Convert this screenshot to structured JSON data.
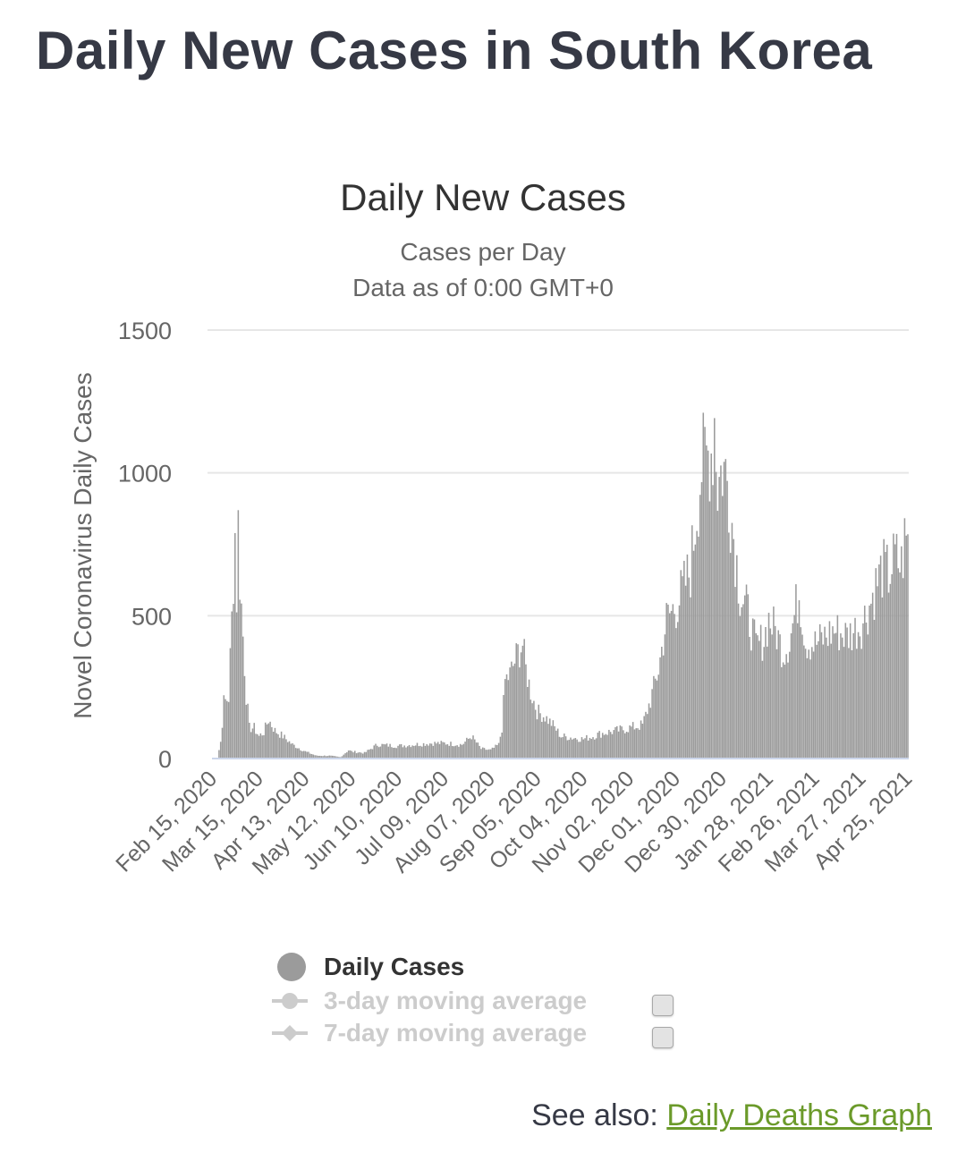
{
  "page": {
    "title": "Daily New Cases in South Korea",
    "see_also_prefix": "See also: ",
    "see_also_link": "Daily Deaths Graph"
  },
  "colors": {
    "bar": "#9b9b9b",
    "grid": "#e6e6e6",
    "axis": "#ccd6eb",
    "text": "#363945",
    "muted": "#666666",
    "legend_disabled": "#cccccc",
    "link": "#6b9a2a"
  },
  "legend": [
    {
      "label": "Daily Cases",
      "active": true,
      "marker": "circle"
    },
    {
      "label": "3-day moving average",
      "active": false,
      "marker": "circle-line"
    },
    {
      "label": "7-day moving average",
      "active": false,
      "marker": "diamond-line"
    }
  ],
  "chart_data": {
    "type": "bar",
    "title": "Daily New Cases",
    "subtitle_lines": [
      "Cases per Day",
      "Data as of 0:00 GMT+0"
    ],
    "ylabel": "Novel Coronavirus Daily Cases",
    "xlabel": "",
    "ylim": [
      0,
      1500
    ],
    "yticks": [
      0,
      500,
      1000,
      1500
    ],
    "grid": true,
    "legend_position": "bottom",
    "x_start": "Feb 15, 2020",
    "x_end": "Apr 25, 2021",
    "x_tick_labels": [
      "Feb 15, 2020",
      "Mar 15, 2020",
      "Apr 13, 2020",
      "May 12, 2020",
      "Jun 10, 2020",
      "Jul 09, 2020",
      "Aug 07, 2020",
      "Sep 05, 2020",
      "Oct 04, 2020",
      "Nov 02, 2020",
      "Dec 01, 2020",
      "Dec 30, 2020",
      "Jan 28, 2021",
      "Feb 26, 2021",
      "Mar 27, 2021",
      "Apr 25, 2021"
    ],
    "series": [
      {
        "name": "Daily Cases",
        "anchors": [
          [
            "Feb 15, 2020",
            0
          ],
          [
            "Feb 18, 2020",
            2
          ],
          [
            "Feb 20, 2020",
            60
          ],
          [
            "Feb 22, 2020",
            200
          ],
          [
            "Feb 25, 2020",
            220
          ],
          [
            "Feb 27, 2020",
            500
          ],
          [
            "Feb 29, 2020",
            810
          ],
          [
            "Mar 01, 2020",
            580
          ],
          [
            "Mar 02, 2020",
            840
          ],
          [
            "Mar 03, 2020",
            650
          ],
          [
            "Mar 05, 2020",
            440
          ],
          [
            "Mar 07, 2020",
            230
          ],
          [
            "Mar 09, 2020",
            110
          ],
          [
            "Mar 12, 2020",
            110
          ],
          [
            "Mar 15, 2020",
            80
          ],
          [
            "Mar 18, 2020",
            95
          ],
          [
            "Mar 21, 2020",
            140
          ],
          [
            "Mar 25, 2020",
            100
          ],
          [
            "Mar 30, 2020",
            80
          ],
          [
            "Apr 05, 2020",
            50
          ],
          [
            "Apr 13, 2020",
            25
          ],
          [
            "Apr 20, 2020",
            10
          ],
          [
            "Apr 28, 2020",
            10
          ],
          [
            "May 05, 2020",
            5
          ],
          [
            "May 10, 2020",
            30
          ],
          [
            "May 12, 2020",
            25
          ],
          [
            "May 20, 2020",
            20
          ],
          [
            "May 28, 2020",
            50
          ],
          [
            "Jun 10, 2020",
            45
          ],
          [
            "Jun 20, 2020",
            50
          ],
          [
            "Jul 01, 2020",
            55
          ],
          [
            "Jul 09, 2020",
            55
          ],
          [
            "Jul 20, 2020",
            50
          ],
          [
            "Jul 26, 2020",
            80
          ],
          [
            "Aug 01, 2020",
            35
          ],
          [
            "Aug 07, 2020",
            30
          ],
          [
            "Aug 12, 2020",
            50
          ],
          [
            "Aug 14, 2020",
            110
          ],
          [
            "Aug 16, 2020",
            280
          ],
          [
            "Aug 19, 2020",
            300
          ],
          [
            "Aug 24, 2020",
            380
          ],
          [
            "Aug 27, 2020",
            410
          ],
          [
            "Aug 29, 2020",
            320
          ],
          [
            "Sep 01, 2020",
            240
          ],
          [
            "Sep 05, 2020",
            170
          ],
          [
            "Sep 10, 2020",
            150
          ],
          [
            "Sep 15, 2020",
            120
          ],
          [
            "Sep 20, 2020",
            80
          ],
          [
            "Sep 27, 2020",
            75
          ],
          [
            "Oct 04, 2020",
            70
          ],
          [
            "Oct 10, 2020",
            80
          ],
          [
            "Oct 15, 2020",
            90
          ],
          [
            "Oct 25, 2020",
            100
          ],
          [
            "Nov 02, 2020",
            110
          ],
          [
            "Nov 10, 2020",
            120
          ],
          [
            "Nov 15, 2020",
            210
          ],
          [
            "Nov 20, 2020",
            320
          ],
          [
            "Nov 25, 2020",
            500
          ],
          [
            "Dec 01, 2020",
            550
          ],
          [
            "Dec 05, 2020",
            600
          ],
          [
            "Dec 10, 2020",
            680
          ],
          [
            "Dec 14, 2020",
            900
          ],
          [
            "Dec 17, 2020",
            1050
          ],
          [
            "Dec 20, 2020",
            1080
          ],
          [
            "Dec 24, 2020",
            1120
          ],
          [
            "Dec 25, 2020",
            1230
          ],
          [
            "Dec 27, 2020",
            980
          ],
          [
            "Dec 30, 2020",
            1050
          ],
          [
            "Jan 02, 2021",
            1000
          ],
          [
            "Jan 05, 2021",
            850
          ],
          [
            "Jan 10, 2021",
            600
          ],
          [
            "Jan 15, 2021",
            520
          ],
          [
            "Jan 20, 2021",
            400
          ],
          [
            "Jan 25, 2021",
            430
          ],
          [
            "Jan 28, 2021",
            500
          ],
          [
            "Feb 02, 2021",
            450
          ],
          [
            "Feb 06, 2021",
            380
          ],
          [
            "Feb 10, 2021",
            420
          ],
          [
            "Feb 16, 2021",
            600
          ],
          [
            "Feb 20, 2021",
            420
          ],
          [
            "Feb 26, 2021",
            410
          ],
          [
            "Mar 05, 2021",
            440
          ],
          [
            "Mar 10, 2021",
            460
          ],
          [
            "Mar 18, 2021",
            440
          ],
          [
            "Mar 27, 2021",
            480
          ],
          [
            "Apr 01, 2021",
            550
          ],
          [
            "Apr 05, 2021",
            620
          ],
          [
            "Apr 09, 2021",
            680
          ],
          [
            "Apr 13, 2021",
            660
          ],
          [
            "Apr 17, 2021",
            720
          ],
          [
            "Apr 21, 2021",
            690
          ],
          [
            "Apr 23, 2021",
            780
          ],
          [
            "Apr 25, 2021",
            780
          ]
        ]
      }
    ]
  }
}
